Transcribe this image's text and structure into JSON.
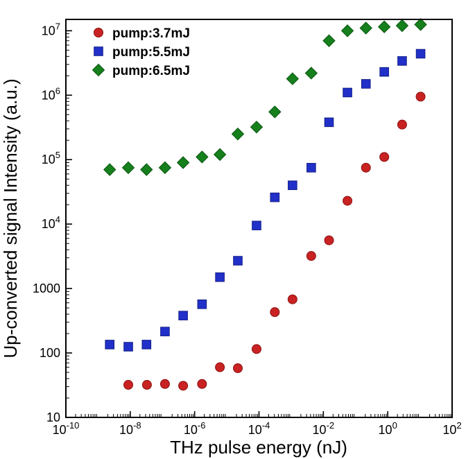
{
  "chart_data": {
    "type": "scatter",
    "title": "",
    "xlabel": "THz pulse energy (nJ)",
    "ylabel": "Up-converted signal Intensity (a.u.)",
    "x_scale": "log",
    "y_scale": "log",
    "xlim": [
      1e-10,
      100
    ],
    "ylim": [
      10,
      15000000
    ],
    "grid": false,
    "legend_position": "top-left",
    "x_tick_exponents": [
      -10,
      -8,
      -6,
      -4,
      -2,
      0,
      2
    ],
    "y_ticks": [
      {
        "value": 10,
        "plain": "10"
      },
      {
        "value": 100,
        "plain": "100"
      },
      {
        "value": 1000,
        "plain": "1000"
      },
      {
        "value": 10000,
        "exp": "4"
      },
      {
        "value": 100000,
        "exp": "5"
      },
      {
        "value": 1000000,
        "exp": "6"
      },
      {
        "value": 10000000,
        "exp": "7"
      }
    ],
    "series": [
      {
        "name": "pump:3.7mJ",
        "marker": "circle",
        "color": "#c92222",
        "edge": "#8c1111",
        "x": [
          8.7e-09,
          3.3e-08,
          1.2e-07,
          4.4e-07,
          1.7e-06,
          6.1e-06,
          2.2e-05,
          8.4e-05,
          0.00031,
          0.0011,
          0.0042,
          0.015,
          0.056,
          0.21,
          0.78,
          2.8,
          10.5
        ],
        "y": [
          32,
          32,
          33,
          31,
          33,
          60,
          58,
          115,
          430,
          680,
          3200,
          5600,
          23000,
          75000,
          110000,
          350000,
          950000
        ]
      },
      {
        "name": "pump:5.5mJ",
        "marker": "square",
        "color": "#2130c8",
        "edge": "#121d86",
        "x": [
          2.3e-09,
          8.7e-09,
          3.2e-08,
          1.2e-07,
          4.4e-07,
          1.7e-06,
          6.1e-06,
          2.2e-05,
          8.4e-05,
          0.00031,
          0.0011,
          0.0042,
          0.015,
          0.056,
          0.21,
          0.78,
          2.8,
          10.5
        ],
        "y": [
          135,
          125,
          135,
          215,
          380,
          570,
          1500,
          2700,
          9500,
          26000,
          40000,
          75000,
          380000,
          1100000,
          1500000,
          2300000,
          3400000,
          4400000
        ]
      },
      {
        "name": "pump:6.5mJ",
        "marker": "diamond",
        "color": "#15801c",
        "edge": "#0b5511",
        "x": [
          2.3e-09,
          8.7e-09,
          3.2e-08,
          1.2e-07,
          4.4e-07,
          1.7e-06,
          6.1e-06,
          2.2e-05,
          8.4e-05,
          0.00031,
          0.0011,
          0.0042,
          0.015,
          0.056,
          0.21,
          0.78,
          2.8,
          10.5
        ],
        "y": [
          70000,
          75000,
          70000,
          75000,
          90000,
          110000,
          120000,
          250000,
          320000,
          550000,
          1800000,
          2200000,
          7000000,
          10000000,
          11000000,
          11500000,
          12000000,
          12500000
        ]
      }
    ]
  }
}
